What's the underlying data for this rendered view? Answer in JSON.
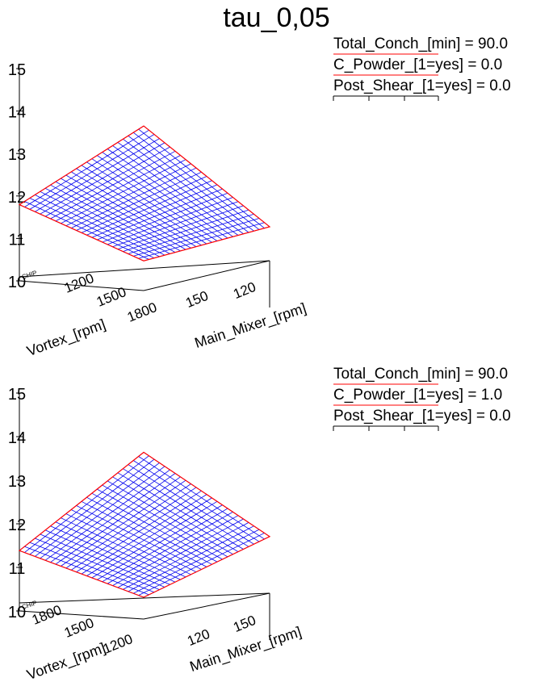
{
  "title": "tau_0,05",
  "chart_data": [
    {
      "type": "surface",
      "zlabel": "CHIP",
      "xlabel": "Vortex_[rpm]",
      "ylabel": "Main_Mixer_[rpm]",
      "zticks": [
        "10",
        "11",
        "12",
        "13",
        "14",
        "15"
      ],
      "xticks": [
        "1200",
        "1500",
        "1800"
      ],
      "yticks": [
        "150",
        "120"
      ],
      "zlim": [
        10,
        15
      ],
      "surface_corners": {
        "front": 10.7,
        "left": 11.7,
        "back": 11.9,
        "right": 10.8
      },
      "surface_color": "#0000ee",
      "edge_color": "#ff0000",
      "legend": [
        {
          "label": "Total_Conch_[min] =",
          "value": "90.0"
        },
        {
          "label": "C_Powder_[1=yes] =",
          "value": "0.0"
        },
        {
          "label": "Post_Shear_[1=yes] =",
          "value": "0.0"
        }
      ]
    },
    {
      "type": "surface",
      "zlabel": "CHIP",
      "xlabel": "Vortex_[rpm]",
      "ylabel": "Main_Mixer_[rpm]",
      "zticks": [
        "10",
        "11",
        "12",
        "13",
        "14",
        "15"
      ],
      "xticks": [
        "1800",
        "1500",
        "1200"
      ],
      "yticks": [
        "120",
        "150"
      ],
      "zlim": [
        10,
        15
      ],
      "surface_corners": {
        "front": 10.5,
        "left": 11.2,
        "back": 11.9,
        "right": 11.3
      },
      "surface_color": "#0000ee",
      "edge_color": "#ff0000",
      "legend": [
        {
          "label": "Total_Conch_[min] =",
          "value": "90.0"
        },
        {
          "label": "C_Powder_[1=yes] =",
          "value": "1.0"
        },
        {
          "label": "Post_Shear_[1=yes] =",
          "value": "0.0"
        }
      ]
    }
  ]
}
